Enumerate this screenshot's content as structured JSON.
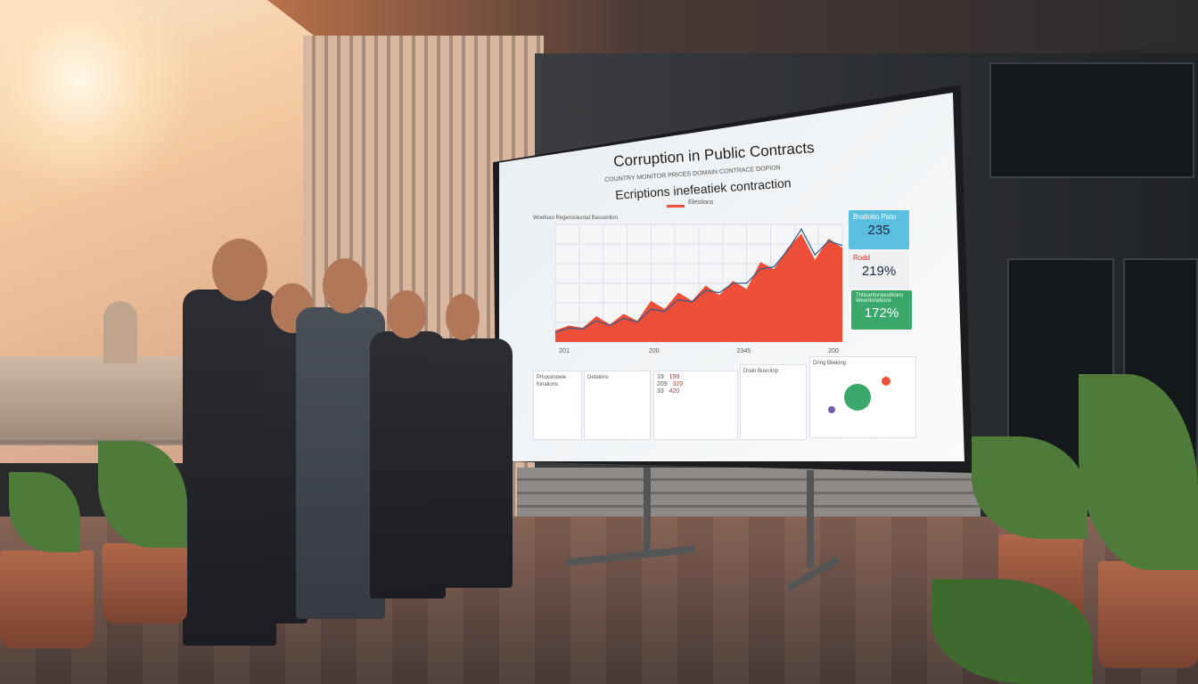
{
  "screen": {
    "title": "Corruption in Public Contracts",
    "subtitle_small": "COUNTRY MONITOR PRICES DOMAIN CONTRACE DOPION",
    "subtitle": "Ecriptions inefeatiek contraction",
    "legend_label": "Elestions",
    "chart_caption": "Woefoan Regenslauotal Bassonlion",
    "stats": [
      {
        "label": "Bratiotio Pato",
        "value": "235",
        "color": "#5bbfe0"
      },
      {
        "label": "Rodd",
        "value": "219%",
        "color": "#eef0f2"
      },
      {
        "label": "Thtioantorsiesblions Weontohetions",
        "value": "172%",
        "color": "#3aa86b"
      }
    ],
    "panels": [
      "Prtuxsinoeie fonalions",
      "Detaions",
      "Drain Bueciinp"
    ],
    "panel_values": [
      "19",
      "199",
      "209",
      "320",
      "33",
      "420"
    ],
    "network_label": "Dring Blieking"
  },
  "chart_data": {
    "type": "area",
    "title": "",
    "x": [
      1,
      2,
      3,
      4,
      5,
      6,
      7,
      8,
      9,
      10,
      11,
      12,
      13,
      14,
      15,
      16,
      17,
      18,
      19,
      20,
      21,
      22
    ],
    "values": [
      10,
      14,
      12,
      22,
      15,
      24,
      18,
      35,
      28,
      42,
      35,
      48,
      40,
      52,
      45,
      68,
      62,
      80,
      92,
      70,
      88,
      80
    ],
    "line_values": [
      8,
      12,
      11,
      18,
      14,
      20,
      17,
      28,
      26,
      36,
      34,
      44,
      42,
      50,
      50,
      62,
      64,
      78,
      96,
      74,
      86,
      82
    ],
    "xtick_labels": [
      "201",
      "200",
      "2345",
      "200"
    ],
    "ylim": [
      0,
      100
    ],
    "grid": true,
    "colors": {
      "area": "#ef4f38",
      "line": "#2d5c8a"
    }
  },
  "colors": {
    "accent": "#ef4f38",
    "teal": "#5bbfe0",
    "green": "#3aa86b"
  }
}
